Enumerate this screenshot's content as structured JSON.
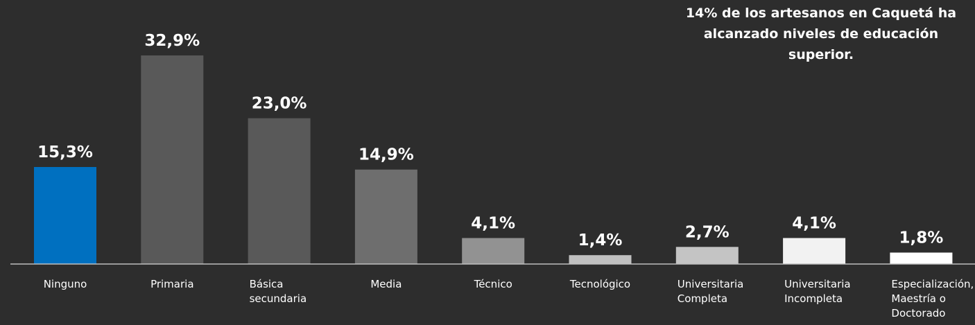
{
  "chart_data": {
    "type": "bar",
    "categories": [
      [
        "Ninguno"
      ],
      [
        "Primaria"
      ],
      [
        "Básica",
        "secundaria"
      ],
      [
        "Media"
      ],
      [
        "Técnico"
      ],
      [
        "Tecnológico"
      ],
      [
        "Universitaria",
        "Completa"
      ],
      [
        "Universitaria",
        "Incompleta"
      ],
      [
        "Especialización,",
        "Maestría o",
        "Doctorado"
      ]
    ],
    "values": [
      15.3,
      32.9,
      23.0,
      14.9,
      4.1,
      1.4,
      2.7,
      4.1,
      1.8
    ],
    "value_labels": [
      "15,3%",
      "32,9%",
      "23,0%",
      "14,9%",
      "4,1%",
      "1,4%",
      "2,7%",
      "4,1%",
      "1,8%"
    ],
    "bar_colors": [
      "#0070c0",
      "#595959",
      "#595959",
      "#6e6e6e",
      "#929292",
      "#c0c0c0",
      "#c4c4c4",
      "#f2f2f2",
      "#ffffff"
    ],
    "title": "",
    "xlabel": "",
    "ylabel": "",
    "ylim": [
      0,
      35
    ],
    "grid": false,
    "annotation": "14% de los artesanos en Caquetá ha alcanzado niveles de educación superior."
  },
  "colors": {
    "background": "#2d2d2d",
    "axis": "#bfbfbf",
    "text": "#ffffff"
  }
}
